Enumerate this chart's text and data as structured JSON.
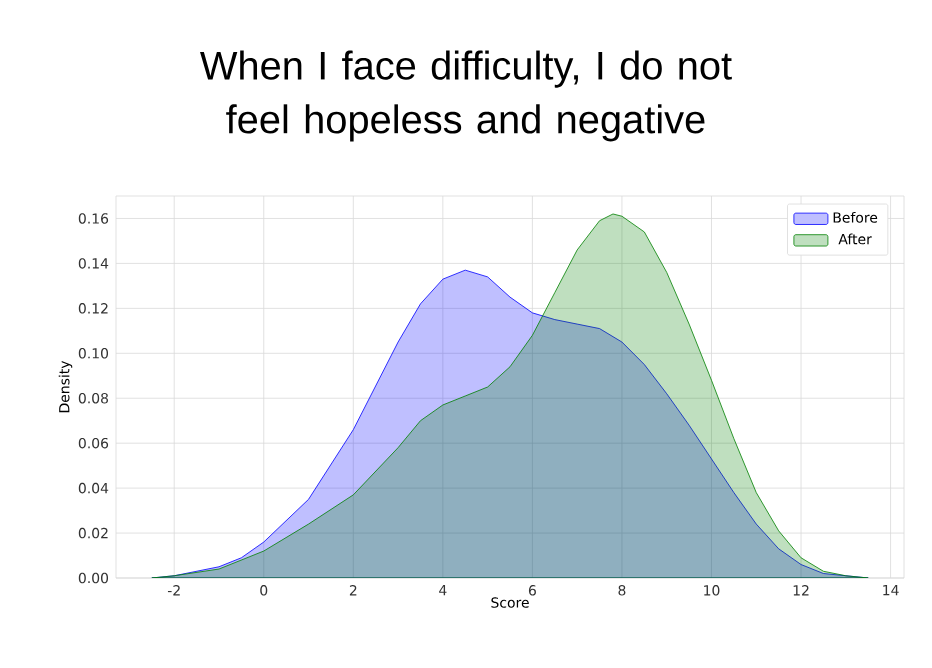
{
  "chart_data": {
    "type": "area",
    "title": "When I face difficulty, I do not feel hopeless and negative",
    "xlabel": "Score",
    "ylabel": "Density",
    "xlim": [
      -3.3,
      14.3
    ],
    "ylim": [
      0,
      0.17
    ],
    "xticks": [
      -2,
      0,
      2,
      4,
      6,
      8,
      10,
      12,
      14
    ],
    "yticks": [
      {
        "value": 0,
        "label": "0.00"
      },
      {
        "value": 0.02,
        "label": "0.02"
      },
      {
        "value": 0.04,
        "label": "0.04"
      },
      {
        "value": 0.06,
        "label": "0.06"
      },
      {
        "value": 0.08,
        "label": "0.08"
      },
      {
        "value": 0.1,
        "label": "0.10"
      },
      {
        "value": 0.12,
        "label": "0.12"
      },
      {
        "value": 0.14,
        "label": "0.14"
      },
      {
        "value": 0.16,
        "label": "0.16"
      }
    ],
    "grid": true,
    "legend": "top right",
    "series": [
      {
        "name": "Before",
        "color": "#0000ff",
        "x": [
          -2.5,
          -2,
          -1,
          -0.5,
          0,
          1,
          2,
          3,
          3.5,
          4,
          4.5,
          5,
          5.5,
          6,
          6.5,
          7,
          7.5,
          8,
          8.5,
          9,
          9.5,
          10,
          10.5,
          11,
          11.5,
          12,
          12.5,
          13,
          13.5
        ],
        "values": [
          0,
          0.001,
          0.005,
          0.009,
          0.016,
          0.035,
          0.066,
          0.105,
          0.122,
          0.133,
          0.137,
          0.134,
          0.125,
          0.118,
          0.115,
          0.113,
          0.111,
          0.105,
          0.095,
          0.082,
          0.068,
          0.053,
          0.038,
          0.024,
          0.013,
          0.006,
          0.002,
          0.001,
          0
        ]
      },
      {
        "name": "After",
        "color": "#008000",
        "x": [
          -2.5,
          -2,
          -1,
          0,
          1,
          2,
          3,
          3.5,
          4,
          4.5,
          5,
          5.5,
          6,
          6.5,
          7,
          7.5,
          7.8,
          8,
          8.5,
          9,
          9.5,
          10,
          10.5,
          11,
          11.5,
          12,
          12.5,
          13,
          13.5
        ],
        "values": [
          0,
          0.001,
          0.004,
          0.012,
          0.024,
          0.037,
          0.058,
          0.07,
          0.077,
          0.081,
          0.085,
          0.094,
          0.108,
          0.127,
          0.146,
          0.159,
          0.162,
          0.161,
          0.154,
          0.136,
          0.113,
          0.088,
          0.062,
          0.038,
          0.021,
          0.009,
          0.003,
          0.001,
          0
        ]
      }
    ]
  }
}
